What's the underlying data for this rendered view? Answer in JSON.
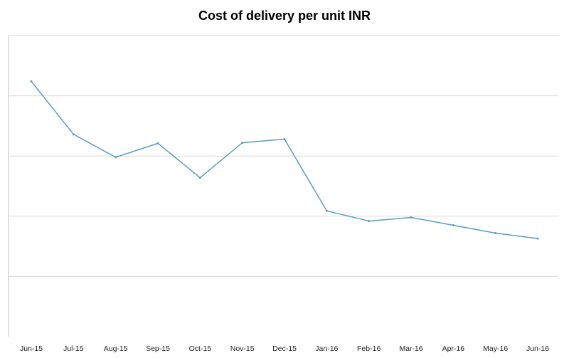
{
  "chart_data": {
    "type": "line",
    "title": "Cost of delivery per unit INR",
    "xlabel": "",
    "ylabel": "",
    "categories": [
      "Jun-15",
      "Jul-15",
      "Aug-15",
      "Sep-15",
      "Oct-15",
      "Nov-15",
      "Dec-15",
      "Jan-16",
      "Feb-16",
      "Mar-16",
      "Apr-16",
      "May-16",
      "Jun-16"
    ],
    "series": [
      {
        "values": [
          4.24,
          3.36,
          2.98,
          3.21,
          2.64,
          3.22,
          3.28,
          2.09,
          1.92,
          1.98,
          1.85,
          1.72,
          1.63
        ]
      }
    ],
    "ylim": [
      0,
      5
    ],
    "ytick_step": 1,
    "y_tick_labels_shown": false,
    "grid": true,
    "legend": "none",
    "colors": {
      "line": "#5b9bc4",
      "grid": "#d9d9d9",
      "axis": "#bfbfbf"
    }
  }
}
